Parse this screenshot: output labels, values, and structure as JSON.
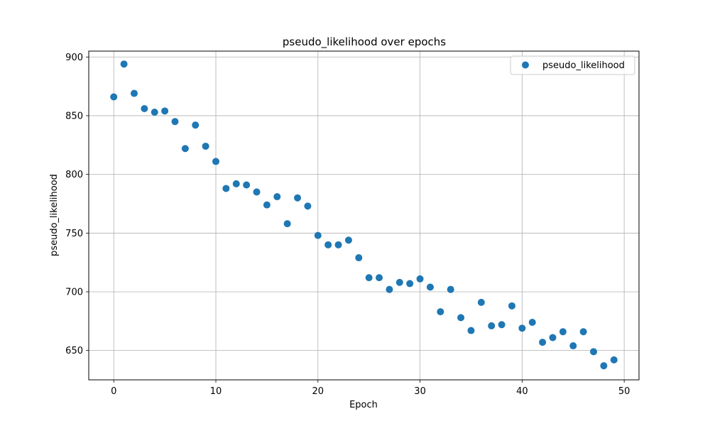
{
  "chart_data": {
    "type": "scatter",
    "title": "pseudo_likelihood over epochs",
    "xlabel": "Epoch",
    "ylabel": "pseudo_likelihood",
    "xlim": [
      -2.45,
      51.45
    ],
    "ylim": [
      625,
      905
    ],
    "xticks": [
      0,
      10,
      20,
      30,
      40,
      50
    ],
    "yticks": [
      650,
      700,
      750,
      800,
      850,
      900
    ],
    "grid": true,
    "legend_position": "top-right",
    "marker_color": "#1f77b4",
    "series": [
      {
        "name": "pseudo_likelihood",
        "x": [
          0,
          1,
          2,
          3,
          4,
          5,
          6,
          7,
          8,
          9,
          10,
          11,
          12,
          13,
          14,
          15,
          16,
          17,
          18,
          19,
          20,
          21,
          22,
          23,
          24,
          25,
          26,
          27,
          28,
          29,
          30,
          31,
          32,
          33,
          34,
          35,
          36,
          37,
          38,
          39,
          40,
          41,
          42,
          43,
          44,
          45,
          46,
          47,
          48,
          49
        ],
        "y": [
          866,
          894,
          869,
          856,
          853,
          854,
          845,
          822,
          842,
          824,
          811,
          788,
          792,
          791,
          785,
          774,
          781,
          758,
          780,
          773,
          748,
          740,
          740,
          744,
          729,
          712,
          712,
          702,
          708,
          707,
          711,
          704,
          683,
          702,
          678,
          667,
          691,
          671,
          672,
          688,
          669,
          674,
          657,
          661,
          666,
          654,
          666,
          649,
          637,
          642
        ]
      }
    ]
  }
}
